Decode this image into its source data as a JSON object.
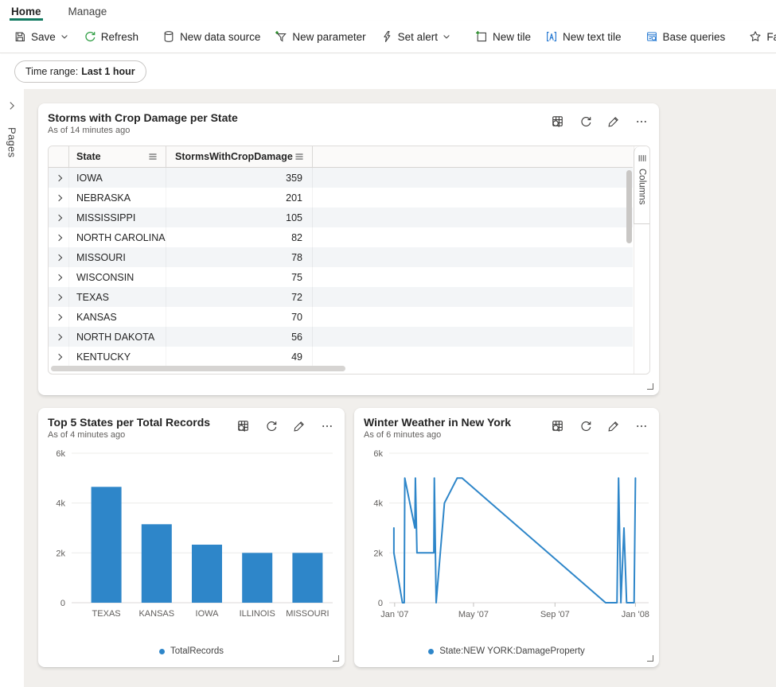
{
  "tabs": {
    "home": "Home",
    "manage": "Manage"
  },
  "toolbar": {
    "save": "Save",
    "refresh": "Refresh",
    "new_data_source": "New data source",
    "new_parameter": "New parameter",
    "set_alert": "Set alert",
    "new_tile": "New tile",
    "new_text_tile": "New text tile",
    "base_queries": "Base queries",
    "favorite": "Favorite"
  },
  "filter_bar": {
    "time_range_label": "Time range:",
    "time_range_value": "Last 1 hour"
  },
  "sidebar": {
    "pages_label": "Pages"
  },
  "tiles": {
    "storms": {
      "title": "Storms with Crop Damage per State",
      "as_of": "As of 14 minutes ago",
      "columns_panel_label": "Columns",
      "table": {
        "columns": [
          "State",
          "StormsWithCropDamage"
        ],
        "rows": [
          {
            "state": "IOWA",
            "value": 359
          },
          {
            "state": "NEBRASKA",
            "value": 201
          },
          {
            "state": "MISSISSIPPI",
            "value": 105
          },
          {
            "state": "NORTH CAROLINA",
            "value": 82
          },
          {
            "state": "MISSOURI",
            "value": 78
          },
          {
            "state": "WISCONSIN",
            "value": 75
          },
          {
            "state": "TEXAS",
            "value": 72
          },
          {
            "state": "KANSAS",
            "value": 70
          },
          {
            "state": "NORTH DAKOTA",
            "value": 56
          },
          {
            "state": "KENTUCKY",
            "value": 49
          }
        ]
      }
    },
    "top5": {
      "title": "Top 5 States per Total Records",
      "as_of": "As of 4 minutes ago",
      "legend": "TotalRecords"
    },
    "winter": {
      "title": "Winter Weather in New York",
      "as_of": "As of 6 minutes ago",
      "legend": "State:NEW YORK:DamageProperty"
    }
  },
  "chart_data": [
    {
      "type": "bar",
      "title": "Top 5 States per Total Records",
      "series_name": "TotalRecords",
      "categories": [
        "TEXAS",
        "KANSAS",
        "IOWA",
        "ILLINOIS",
        "MISSOURI"
      ],
      "values": [
        4650,
        3150,
        2330,
        2000,
        2000
      ],
      "xlabel": "",
      "ylabel": "",
      "ylim": [
        0,
        6000
      ],
      "yticks": [
        {
          "label": "0",
          "value": 0
        },
        {
          "label": "2k",
          "value": 2000
        },
        {
          "label": "4k",
          "value": 4000
        },
        {
          "label": "6k",
          "value": 6000
        }
      ],
      "grid": true,
      "legend_position": "bottom",
      "color": "#2e86c9"
    },
    {
      "type": "line",
      "title": "Winter Weather in New York",
      "series": [
        {
          "name": "State:NEW YORK:DamageProperty",
          "points": [
            [
              0.018,
              3000
            ],
            [
              0.018,
              2000
            ],
            [
              0.051,
              0
            ],
            [
              0.058,
              0
            ],
            [
              0.06,
              5000
            ],
            [
              0.099,
              3000
            ],
            [
              0.101,
              5000
            ],
            [
              0.107,
              2000
            ],
            [
              0.172,
              2000
            ],
            [
              0.174,
              5000
            ],
            [
              0.181,
              0
            ],
            [
              0.213,
              4000
            ],
            [
              0.262,
              5000
            ],
            [
              0.281,
              5000
            ],
            [
              0.834,
              0
            ],
            [
              0.878,
              0
            ],
            [
              0.884,
              5000
            ],
            [
              0.893,
              0
            ],
            [
              0.905,
              3000
            ],
            [
              0.915,
              0
            ],
            [
              0.944,
              0
            ],
            [
              0.949,
              5000
            ]
          ]
        }
      ],
      "x_axis_ticks": [
        {
          "label": "Jan '07",
          "pos": 0.021
        },
        {
          "label": "May '07",
          "pos": 0.325
        },
        {
          "label": "Sep '07",
          "pos": 0.639
        },
        {
          "label": "Jan '08",
          "pos": 0.949
        }
      ],
      "ylim": [
        0,
        6000
      ],
      "yticks": [
        {
          "label": "0",
          "value": 0
        },
        {
          "label": "2k",
          "value": 2000
        },
        {
          "label": "4k",
          "value": 4000
        },
        {
          "label": "6k",
          "value": 6000
        }
      ],
      "grid": true,
      "legend_position": "bottom",
      "color": "#2e86c9"
    }
  ],
  "colors": {
    "accent_teal": "#127a60",
    "chart_blue": "#2e86c9",
    "icon_green": "#107c10",
    "icon_blue": "#2b7cd3",
    "canvas_bg": "#f1efec"
  },
  "icons": {
    "toolbar": [
      "save-icon",
      "chevron-down-icon",
      "refresh-icon",
      "database-icon",
      "funnel-add-icon",
      "lightning-icon",
      "new-tile-icon",
      "text-tile-icon",
      "base-queries-icon",
      "star-icon"
    ],
    "tile_actions": [
      "explore-data-icon",
      "refresh-tile-icon",
      "edit-icon",
      "more-icon"
    ]
  }
}
